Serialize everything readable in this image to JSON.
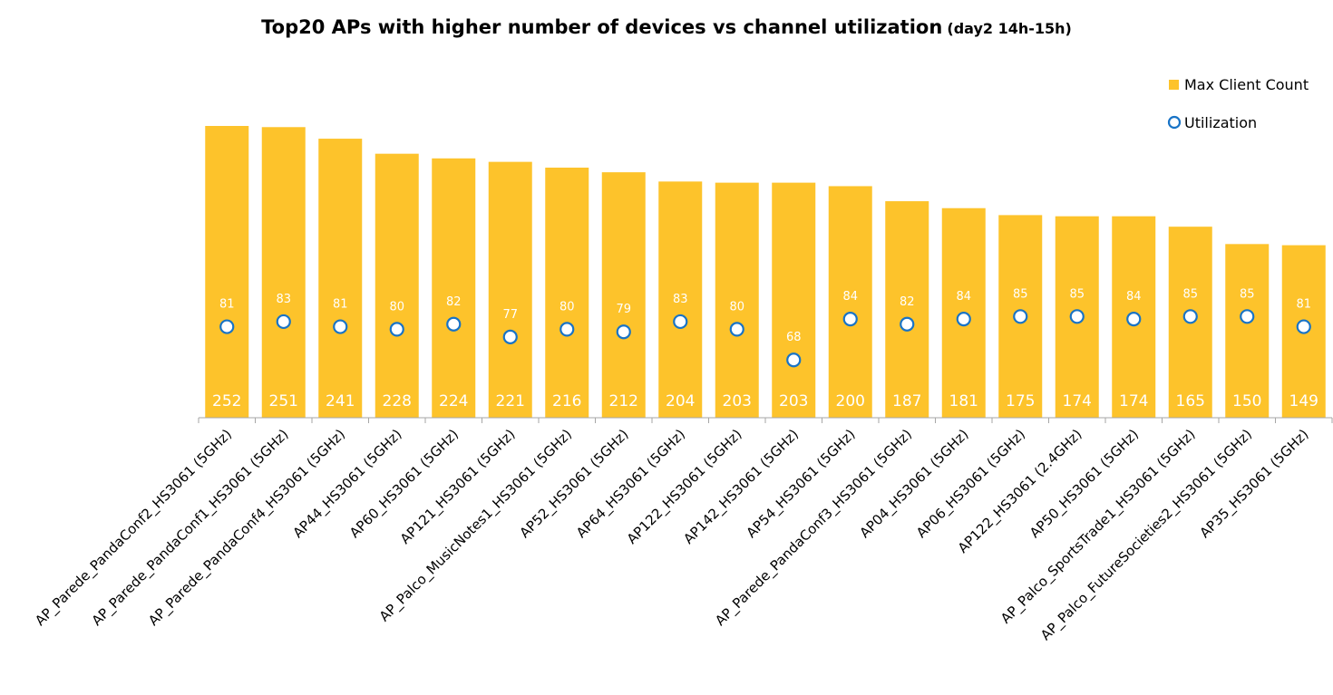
{
  "chart_data": {
    "type": "bar",
    "title": "Top20 APs with higher number of devices vs channel utilization",
    "subtitle": "(day2 14h-15h)",
    "categories": [
      "AP_Parede_PandaConf2_HS3061 (5GHz)",
      "AP_Parede_PandaConf1_HS3061 (5GHz)",
      "AP_Parede_PandaConf4_HS3061 (5GHz)",
      "AP44_HS3061 (5GHz)",
      "AP60_HS3061 (5GHz)",
      "AP121_HS3061 (5GHz)",
      "AP_Palco_MusicNotes1_HS3061 (5GHz)",
      "AP52_HS3061 (5GHz)",
      "AP64_HS3061 (5GHz)",
      "AP122_HS3061 (5GHz)",
      "AP142_HS3061 (5GHz)",
      "AP54_HS3061 (5GHz)",
      "AP_Parede_PandaConf3_HS3061 (5GHz)",
      "AP04_HS3061 (5GHz)",
      "AP06_HS3061 (5GHz)",
      "AP122_HS3061 (2.4GHz)",
      "AP50_HS3061 (5GHz)",
      "AP_Palco_SportsTrade1_HS3061 (5GHz)",
      "AP_Palco_FutureSocieties2_HS3061 (5GHz)",
      "AP35_HS3061 (5GHz)"
    ],
    "series": [
      {
        "name": "Max Client Count",
        "type": "bar",
        "color": "#FDC32B",
        "values": [
          252,
          251,
          241,
          228,
          224,
          221,
          216,
          212,
          204,
          203,
          203,
          200,
          187,
          181,
          175,
          174,
          174,
          165,
          150,
          149
        ]
      },
      {
        "name": "Utilization",
        "type": "scatter",
        "color": "#1873C6",
        "values": [
          81,
          83,
          81,
          80,
          82,
          77,
          80,
          79,
          83,
          80,
          68,
          84,
          82,
          84,
          85,
          85,
          84,
          85,
          85,
          81
        ]
      }
    ],
    "legend": "right",
    "grid": false,
    "ylim_bars": [
      0,
      255
    ],
    "ylim_utilization": [
      0,
      100
    ]
  }
}
